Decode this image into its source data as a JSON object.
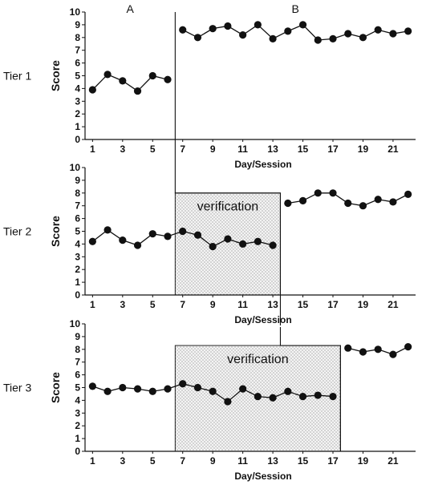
{
  "chart_data": [
    {
      "type": "line",
      "row_label": "Tier 1",
      "ylabel": "Score",
      "xlabel": "Day/Session",
      "ylim": [
        0,
        10
      ],
      "yticks": [
        0,
        1,
        2,
        3,
        4,
        5,
        6,
        7,
        8,
        9,
        10
      ],
      "xlim": [
        0.5,
        22.5
      ],
      "xticks": [
        1,
        3,
        5,
        7,
        9,
        11,
        13,
        15,
        17,
        19,
        21
      ],
      "phase_labels": [
        {
          "text": "A",
          "x": 3.5
        },
        {
          "text": "B",
          "x": 14.5
        }
      ],
      "phase_change_after": 6,
      "verification": null,
      "series": [
        {
          "x": [
            1,
            2,
            3,
            4,
            5,
            6
          ],
          "y": [
            3.9,
            5.1,
            4.6,
            3.8,
            5.0,
            4.7
          ]
        },
        {
          "x": [
            7,
            8,
            9,
            10,
            11,
            12,
            13,
            14,
            15,
            16,
            17,
            18,
            19,
            20,
            21,
            22
          ],
          "y": [
            8.6,
            8.0,
            8.7,
            8.9,
            8.2,
            9.0,
            7.9,
            8.5,
            9.0,
            7.8,
            7.9,
            8.3,
            8.0,
            8.6,
            8.3,
            8.5
          ]
        }
      ]
    },
    {
      "type": "line",
      "row_label": "Tier 2",
      "ylabel": "Score",
      "xlabel": "Day/Session",
      "ylim": [
        0,
        10
      ],
      "yticks": [
        0,
        1,
        2,
        3,
        4,
        5,
        6,
        7,
        8,
        9,
        10
      ],
      "xlim": [
        0.5,
        22.5
      ],
      "xticks": [
        1,
        3,
        5,
        7,
        9,
        11,
        13,
        15,
        17,
        19,
        21
      ],
      "phase_labels": [],
      "phase_change_after": 13,
      "verification": {
        "label": "verification",
        "from": 7,
        "to": 13,
        "top": 8
      },
      "series": [
        {
          "x": [
            1,
            2,
            3,
            4,
            5,
            6,
            7,
            8,
            9,
            10,
            11,
            12,
            13
          ],
          "y": [
            4.2,
            5.1,
            4.3,
            3.9,
            4.8,
            4.6,
            5.0,
            4.7,
            3.8,
            4.4,
            4.0,
            4.2,
            3.9
          ]
        },
        {
          "x": [
            14,
            15,
            16,
            17,
            18,
            19,
            20,
            21,
            22
          ],
          "y": [
            7.2,
            7.4,
            8.0,
            8.0,
            7.2,
            7.0,
            7.5,
            7.3,
            7.9
          ]
        }
      ]
    },
    {
      "type": "line",
      "row_label": "Tier 3",
      "ylabel": "Score",
      "xlabel": "Day/Session",
      "ylim": [
        0,
        10
      ],
      "yticks": [
        0,
        1,
        2,
        3,
        4,
        5,
        6,
        7,
        8,
        9,
        10
      ],
      "xlim": [
        0.5,
        22.5
      ],
      "xticks": [
        1,
        3,
        5,
        7,
        9,
        11,
        13,
        15,
        17,
        19,
        21
      ],
      "phase_labels": [],
      "phase_change_after": 17,
      "verification": {
        "label": "verification",
        "from": 7,
        "to": 17,
        "top": 8.3
      },
      "series": [
        {
          "x": [
            1,
            2,
            3,
            4,
            5,
            6,
            7,
            8,
            9,
            10,
            11,
            12,
            13,
            14,
            15,
            16,
            17
          ],
          "y": [
            5.1,
            4.7,
            5.0,
            4.9,
            4.7,
            4.9,
            5.3,
            5.0,
            4.7,
            3.9,
            4.9,
            4.3,
            4.2,
            4.7,
            4.3,
            4.4,
            4.3
          ]
        },
        {
          "x": [
            18,
            19,
            20,
            21,
            22
          ],
          "y": [
            8.1,
            7.8,
            8.0,
            7.6,
            8.2
          ]
        }
      ]
    }
  ]
}
